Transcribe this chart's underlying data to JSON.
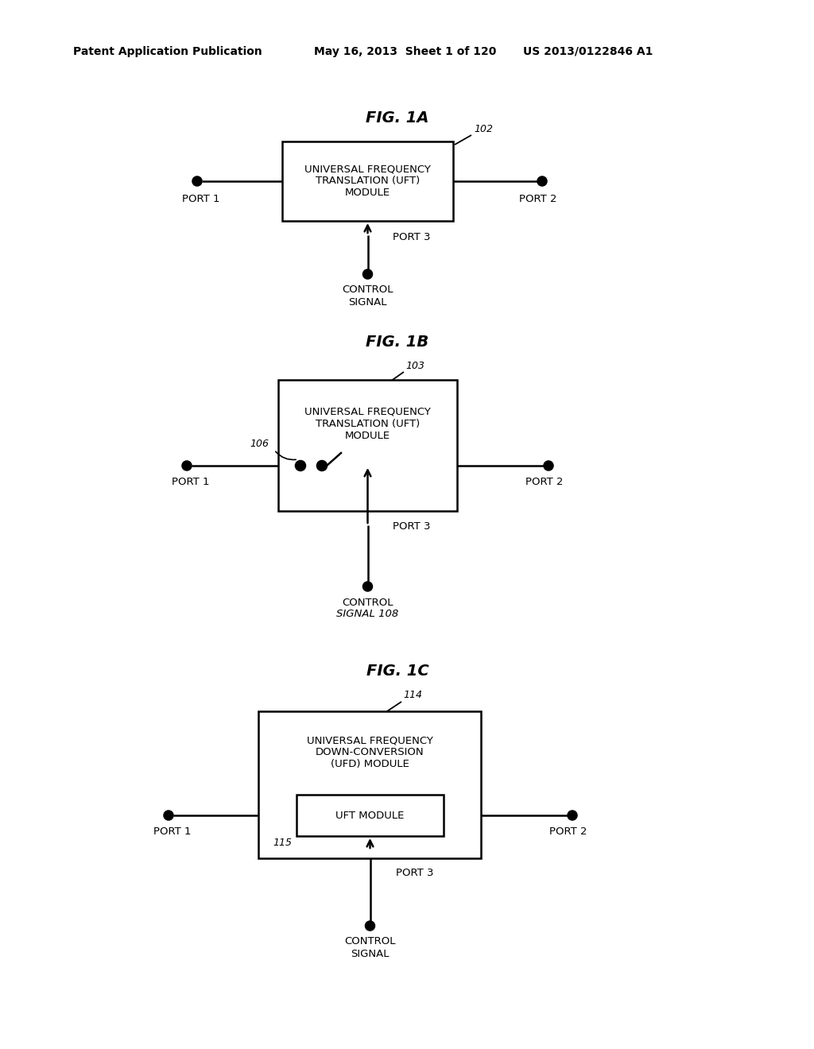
{
  "bg_color": "#ffffff",
  "header_left": "Patent Application Publication",
  "header_mid": "May 16, 2013  Sheet 1 of 120",
  "header_right": "US 2013/0122846 A1",
  "fig1a_title": "FIG. 1A",
  "fig1b_title": "FIG. 1B",
  "fig1c_title": "FIG. 1C",
  "fig1a_box_label": "UNIVERSAL FREQUENCY\nTRANSLATION (UFT)\nMODULE",
  "fig1b_box_label": "UNIVERSAL FREQUENCY\nTRANSLATION (UFT)\nMODULE",
  "fig1c_outer_label": "UNIVERSAL FREQUENCY\nDOWN-CONVERSION\n(UFD) MODULE",
  "fig1c_inner_label": "UFT MODULE",
  "label_102": "102",
  "label_103": "103",
  "label_106": "106",
  "label_108": "108",
  "label_114": "114",
  "label_115": "115",
  "port1": "PORT 1",
  "port2": "PORT 2",
  "port3": "PORT 3",
  "control_signal": "CONTROL\nSIGNAL"
}
